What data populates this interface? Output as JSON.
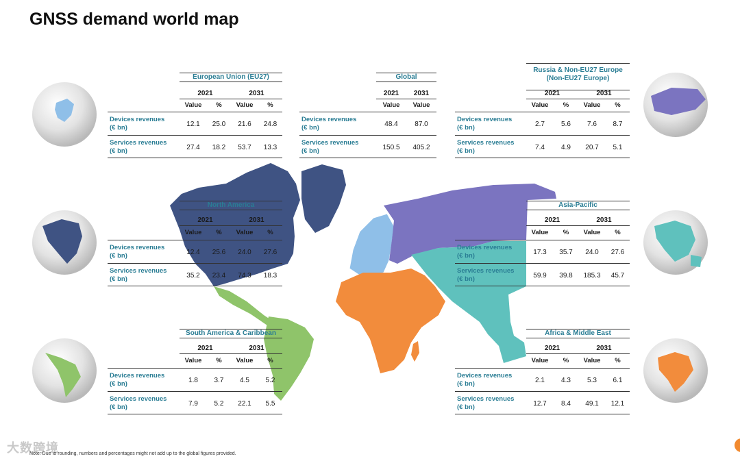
{
  "page": {
    "title": "GNSS demand world map"
  },
  "columns": {
    "y2021": "2021",
    "y2031": "2031",
    "value": "Value",
    "pct": "%"
  },
  "row_labels": {
    "devices_l1": "Devices revenues",
    "services_l1": "Services revenues",
    "unit": "(€ bn)"
  },
  "colors": {
    "eu": "#8fbfe8",
    "north_america": "#3f5383",
    "south_america": "#8fc46a",
    "russia": "#7b74c0",
    "asia_pacific": "#5fc1bd",
    "africa_me": "#f28c3c",
    "region_text": "#2a7d94"
  },
  "tables": {
    "eu": {
      "name": "European Union (EU27)",
      "devices": [
        "12.1",
        "25.0",
        "21.6",
        "24.8"
      ],
      "services": [
        "27.4",
        "18.2",
        "53.7",
        "13.3"
      ]
    },
    "global": {
      "name": "Global",
      "devices": [
        "48.4",
        "87.0"
      ],
      "services": [
        "150.5",
        "405.2"
      ]
    },
    "russia": {
      "name": "Russia & Non-EU27 Europe\n(Non-EU27 Europe)",
      "name_l1": "Russia & Non-EU27 Europe",
      "name_l2": "(Non-EU27 Europe)",
      "devices": [
        "2.7",
        "5.6",
        "7.6",
        "8.7"
      ],
      "services": [
        "7.4",
        "4.9",
        "20.7",
        "5.1"
      ]
    },
    "north_america": {
      "name": "North America",
      "devices": [
        "12.4",
        "25.6",
        "24.0",
        "27.6"
      ],
      "services": [
        "35.2",
        "23.4",
        "74.3",
        "18.3"
      ]
    },
    "asia_pacific": {
      "name": "Asia-Pacific",
      "devices": [
        "17.3",
        "35.7",
        "24.0",
        "27.6"
      ],
      "services": [
        "59.9",
        "39.8",
        "185.3",
        "45.7"
      ]
    },
    "south_america": {
      "name": "South America & Caribbean",
      "devices": [
        "1.8",
        "3.7",
        "4.5",
        "5.2"
      ],
      "services": [
        "7.9",
        "5.2",
        "22.1",
        "5.5"
      ]
    },
    "africa_me": {
      "name": "Africa & Middle East",
      "devices": [
        "2.1",
        "4.3",
        "5.3",
        "6.1"
      ],
      "services": [
        "12.7",
        "8.4",
        "49.1",
        "12.1"
      ]
    }
  },
  "footer": {
    "note": "Note: Due to rounding, numbers and percentages might not add up to the global figures provided.",
    "watermark": "大数跨境"
  }
}
